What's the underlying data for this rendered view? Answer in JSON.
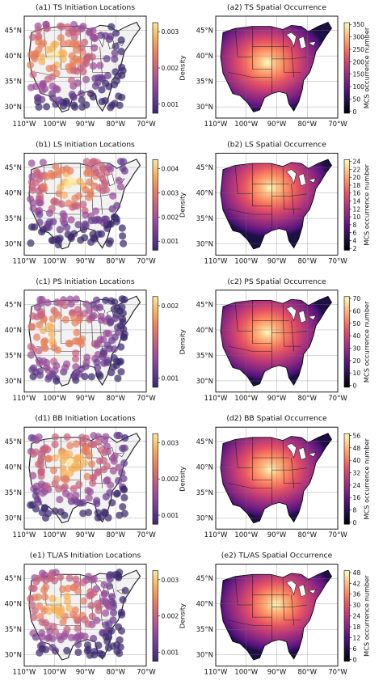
{
  "colors": {
    "magma": [
      "#000004",
      "#1c1044",
      "#4f127b",
      "#812581",
      "#b5367a",
      "#e55064",
      "#fb8761",
      "#fec287",
      "#fcfdbf"
    ],
    "plasma_density": [
      "#3b2a6e",
      "#6a3d8e",
      "#9a4f9a",
      "#c8627f",
      "#e8815e",
      "#f6b35a",
      "#fbe8a0"
    ],
    "land_density": "#f2f2f2",
    "point_color": "#6b3f8f"
  },
  "axes": {
    "lon_ticks": [
      "110°W",
      "100°W",
      "90°W",
      "80°W",
      "70°W"
    ],
    "lat_ticks": [
      "45°N",
      "40°N",
      "35°N",
      "30°N"
    ]
  },
  "rows": [
    {
      "left": {
        "title": "(a1) TS Initiation Locations",
        "cbar_label": "Density",
        "cbar_ticks": [
          "0.003",
          "0.002",
          "0.001"
        ],
        "hotspot": [
          0.25,
          0.38
        ]
      },
      "right": {
        "title": "(a2) TS Spatial Occurrence",
        "cbar_label": "MCS occurrence number",
        "cbar_ticks": [
          "350",
          "300",
          "250",
          "200",
          "150",
          "100",
          "50",
          "0"
        ],
        "hotspot": [
          0.42,
          0.45
        ]
      }
    },
    {
      "left": {
        "title": "(b1) LS Initiation Locations",
        "cbar_label": "Density",
        "cbar_ticks": [
          "0.004",
          "0.003",
          "0.002",
          "0.001"
        ],
        "hotspot": [
          0.38,
          0.3
        ]
      },
      "right": {
        "title": "(b2) LS Spatial Occurrence",
        "cbar_label": "MCS occurrence number",
        "cbar_ticks": [
          "24",
          "22",
          "20",
          "18",
          "16",
          "14",
          "12",
          "10",
          "8",
          "6",
          "4",
          "2"
        ],
        "hotspot": [
          0.45,
          0.32
        ]
      }
    },
    {
      "left": {
        "title": "(c1) PS Initiation Locations",
        "cbar_label": "Density",
        "cbar_ticks": [
          "0.002",
          "0.001"
        ],
        "hotspot": [
          0.28,
          0.42
        ]
      },
      "right": {
        "title": "(c2) PS Spatial Occurrence",
        "cbar_label": "MCS occurrence number",
        "cbar_ticks": [
          "70",
          "60",
          "50",
          "40",
          "30",
          "20",
          "10",
          "0"
        ],
        "hotspot": [
          0.42,
          0.4
        ]
      }
    },
    {
      "left": {
        "title": "(d1) BB Initiation Locations",
        "cbar_label": "Density",
        "cbar_ticks": [
          "0.003",
          "0.002",
          "0.001"
        ],
        "hotspot": [
          0.38,
          0.35
        ]
      },
      "right": {
        "title": "(d2) BB Spatial Occurrence",
        "cbar_label": "MCS occurrence number",
        "cbar_ticks": [
          "56",
          "48",
          "40",
          "32",
          "24",
          "16",
          "8",
          "0"
        ],
        "hotspot": [
          0.45,
          0.4
        ]
      }
    },
    {
      "left": {
        "title": "(e1) TL/AS Initiation Locations",
        "cbar_label": "Density",
        "cbar_ticks": [
          "0.003",
          "0.002",
          "0.001"
        ],
        "hotspot": [
          0.3,
          0.38
        ]
      },
      "right": {
        "title": "(e2) TL/AS Spatial Occurrence",
        "cbar_label": "MCS occurrence number",
        "cbar_ticks": [
          "48",
          "42",
          "36",
          "30",
          "24",
          "18",
          "12",
          "6",
          "0"
        ],
        "hotspot": [
          0.5,
          0.38
        ]
      }
    }
  ]
}
